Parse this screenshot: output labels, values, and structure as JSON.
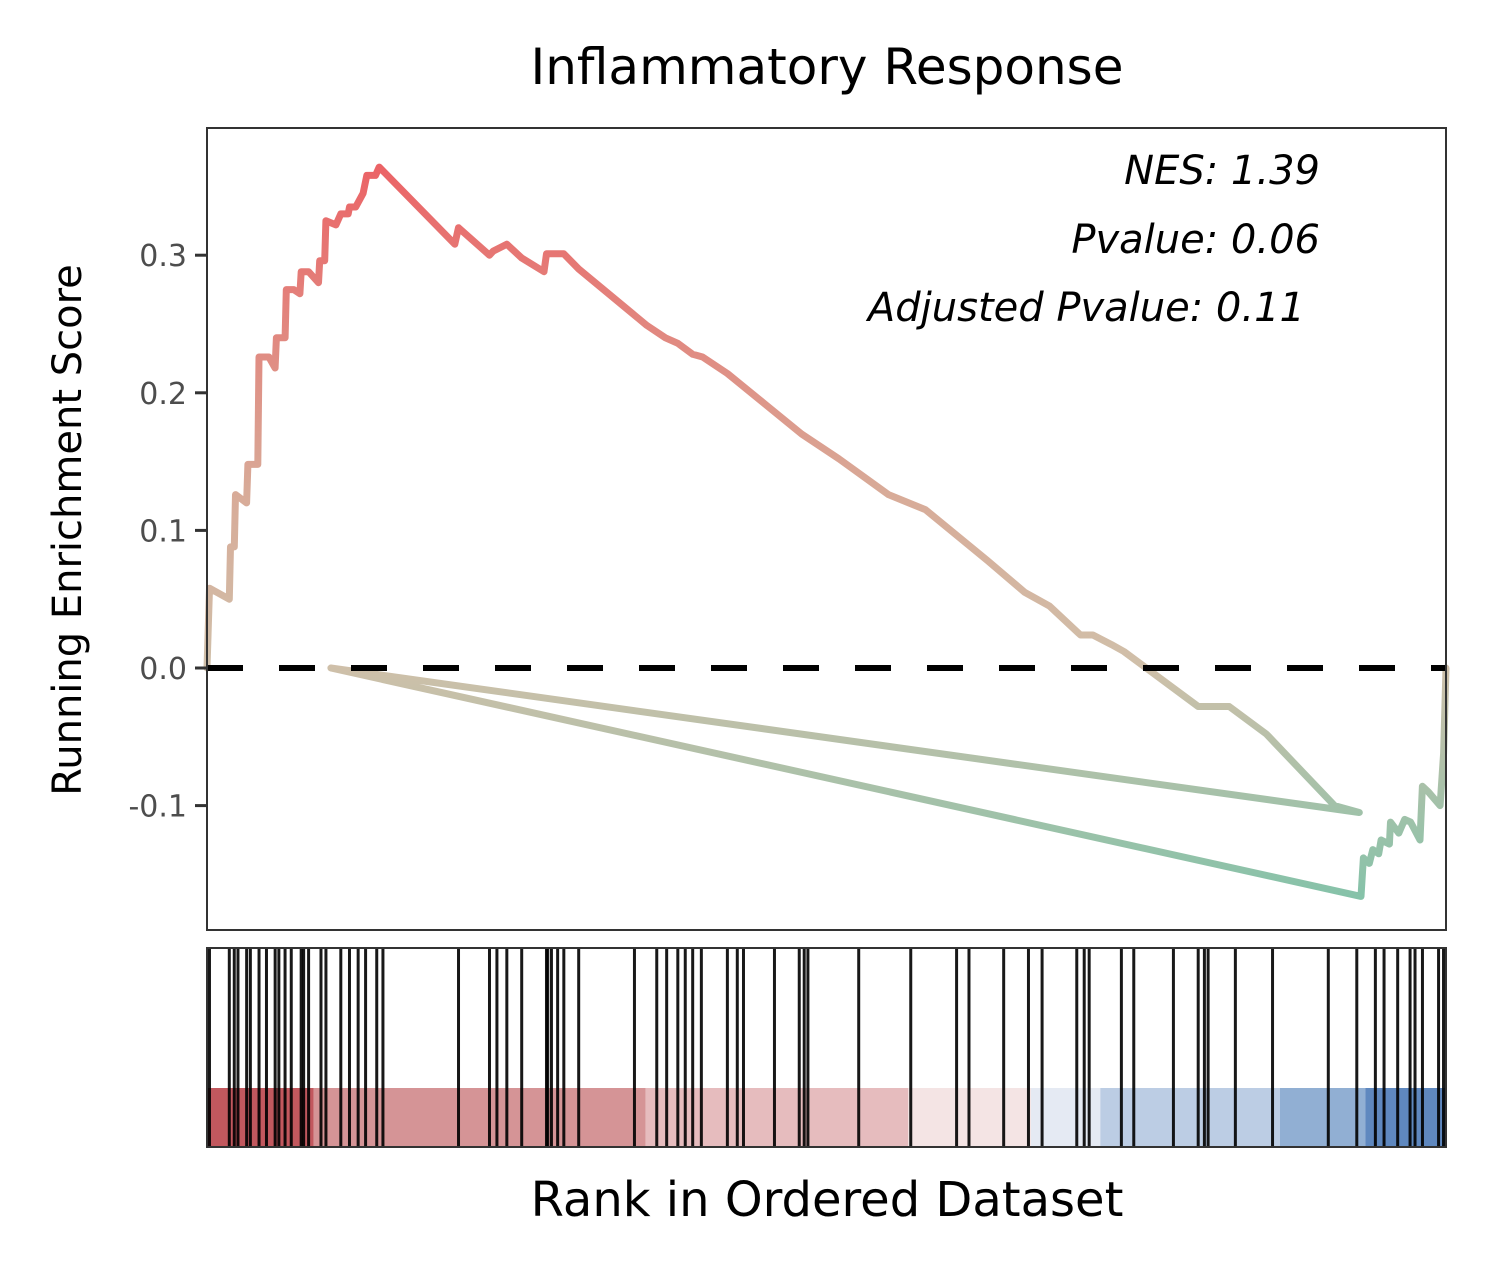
{
  "chart_data": {
    "type": "line",
    "title": "Inflammatory Response",
    "xlabel": "Rank in Ordered Dataset",
    "ylabel": "Running Enrichment Score",
    "ylim": [
      -0.19,
      0.39
    ],
    "xlim": [
      0,
      1
    ],
    "yticks": [
      {
        "value": -0.1,
        "label": "-0.1"
      },
      {
        "value": 0.0,
        "label": "0.0"
      },
      {
        "value": 0.1,
        "label": "0.1"
      },
      {
        "value": 0.2,
        "label": "0.2"
      },
      {
        "value": 0.3,
        "label": "0.3"
      }
    ],
    "annotations": [
      "NES: 1.39",
      "Pvalue: 0.06",
      "Adjusted Pvalue: 0.11"
    ],
    "zero_line": true,
    "colors": {
      "positive": "#e8464a",
      "neutral": "#c8b49a",
      "negative": "#6fb89a",
      "rank_high": "#b2182b",
      "rank_low": "#2166ac"
    },
    "series": [
      {
        "values": [
          [
            0.0,
            0.0
          ],
          [
            0.002,
            0.058
          ],
          [
            0.018,
            0.05
          ],
          [
            0.019,
            0.088
          ],
          [
            0.022,
            0.088
          ],
          [
            0.023,
            0.126
          ],
          [
            0.032,
            0.12
          ],
          [
            0.033,
            0.148
          ],
          [
            0.041,
            0.148
          ],
          [
            0.042,
            0.226
          ],
          [
            0.05,
            0.226
          ],
          [
            0.055,
            0.218
          ],
          [
            0.056,
            0.24
          ],
          [
            0.063,
            0.24
          ],
          [
            0.064,
            0.275
          ],
          [
            0.07,
            0.275
          ],
          [
            0.075,
            0.272
          ],
          [
            0.076,
            0.288
          ],
          [
            0.082,
            0.288
          ],
          [
            0.09,
            0.28
          ],
          [
            0.091,
            0.296
          ],
          [
            0.095,
            0.296
          ],
          [
            0.096,
            0.325
          ],
          [
            0.104,
            0.322
          ],
          [
            0.108,
            0.33
          ],
          [
            0.114,
            0.33
          ],
          [
            0.115,
            0.335
          ],
          [
            0.12,
            0.335
          ],
          [
            0.126,
            0.345
          ],
          [
            0.129,
            0.358
          ],
          [
            0.136,
            0.358
          ],
          [
            0.139,
            0.364
          ],
          [
            0.2,
            0.308
          ],
          [
            0.203,
            0.32
          ],
          [
            0.228,
            0.3
          ],
          [
            0.231,
            0.303
          ],
          [
            0.242,
            0.308
          ],
          [
            0.254,
            0.298
          ],
          [
            0.272,
            0.288
          ],
          [
            0.274,
            0.301
          ],
          [
            0.288,
            0.301
          ],
          [
            0.3,
            0.29
          ],
          [
            0.355,
            0.249
          ],
          [
            0.37,
            0.24
          ],
          [
            0.38,
            0.236
          ],
          [
            0.392,
            0.228
          ],
          [
            0.4,
            0.226
          ],
          [
            0.42,
            0.214
          ],
          [
            0.45,
            0.192
          ],
          [
            0.48,
            0.17
          ],
          [
            0.51,
            0.152
          ],
          [
            0.55,
            0.126
          ],
          [
            0.58,
            0.115
          ],
          [
            0.63,
            0.078
          ],
          [
            0.66,
            0.055
          ],
          [
            0.68,
            0.045
          ],
          [
            0.705,
            0.024
          ],
          [
            0.715,
            0.024
          ],
          [
            0.73,
            0.017
          ],
          [
            0.74,
            0.012
          ],
          [
            0.8,
            -0.028
          ],
          [
            0.825,
            -0.028
          ],
          [
            0.855,
            -0.048
          ],
          [
            0.91,
            -0.1
          ],
          [
            0.93,
            -0.105
          ],
          [
            0.1,
            0.0
          ],
          [
            1.0,
            0.0
          ]
        ]
      }
    ],
    "gene_hits": [
      0.002,
      0.018,
      0.022,
      0.025,
      0.032,
      0.035,
      0.042,
      0.048,
      0.055,
      0.058,
      0.063,
      0.068,
      0.076,
      0.078,
      0.082,
      0.092,
      0.096,
      0.108,
      0.115,
      0.122,
      0.128,
      0.137,
      0.142,
      0.203,
      0.228,
      0.234,
      0.242,
      0.254,
      0.274,
      0.275,
      0.278,
      0.283,
      0.288,
      0.3,
      0.345,
      0.363,
      0.371,
      0.38,
      0.386,
      0.392,
      0.399,
      0.42,
      0.428,
      0.433,
      0.458,
      0.478,
      0.482,
      0.485,
      0.526,
      0.568,
      0.605,
      0.615,
      0.643,
      0.663,
      0.674,
      0.702,
      0.708,
      0.712,
      0.738,
      0.748,
      0.78,
      0.8,
      0.805,
      0.808,
      0.83,
      0.86,
      0.905,
      0.928,
      0.943,
      0.95,
      0.961,
      0.971,
      0.975,
      0.981,
      0.994,
      0.998
    ],
    "rank_bands": [
      {
        "start": 0.0,
        "end": 0.086,
        "color": "#c2585e"
      },
      {
        "start": 0.086,
        "end": 0.354,
        "color": "#d59496"
      },
      {
        "start": 0.354,
        "end": 0.566,
        "color": "#e6bcbe"
      },
      {
        "start": 0.566,
        "end": 0.665,
        "color": "#f4e4e4"
      },
      {
        "start": 0.665,
        "end": 0.721,
        "color": "#e5eaf3"
      },
      {
        "start": 0.721,
        "end": 0.866,
        "color": "#bccde4"
      },
      {
        "start": 0.866,
        "end": 0.935,
        "color": "#91afd3"
      },
      {
        "start": 0.935,
        "end": 1.0,
        "color": "#5f88bf"
      }
    ]
  }
}
